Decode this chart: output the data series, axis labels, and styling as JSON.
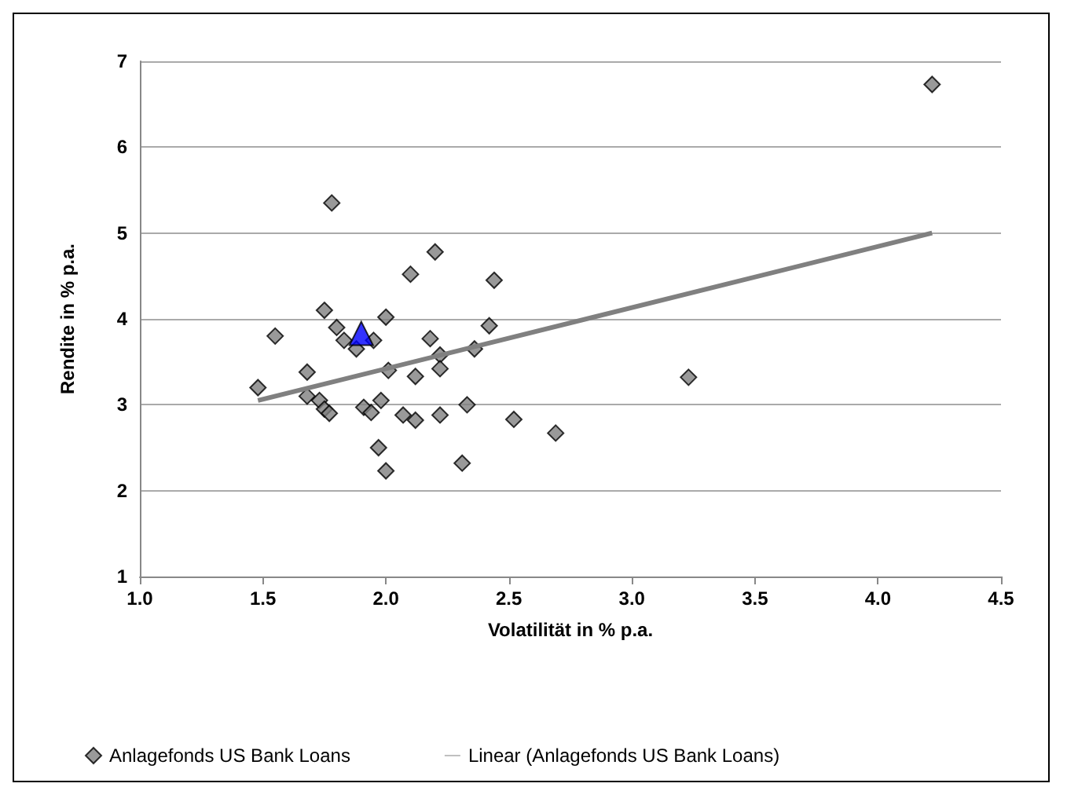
{
  "chart_data": {
    "type": "scatter",
    "xlabel": "Volatilität in % p.a.",
    "ylabel": "Rendite in % p.a.",
    "xlim": [
      1,
      4.5
    ],
    "xticks": [
      {
        "value": 1,
        "label": "1.0"
      },
      {
        "value": 1.5,
        "label": "1.5"
      },
      {
        "value": 2,
        "label": "2.0"
      },
      {
        "value": 2.5,
        "label": "2.5"
      },
      {
        "value": 3,
        "label": "3.0"
      },
      {
        "value": 3.5,
        "label": "3.5"
      },
      {
        "value": 4,
        "label": "4.0"
      },
      {
        "value": 4.5,
        "label": "4.5"
      }
    ],
    "ylim": [
      1,
      7
    ],
    "yticks": [
      1,
      2,
      3,
      4,
      5,
      6,
      7
    ],
    "grid": "y",
    "legend": "bottom",
    "series": [
      {
        "name": "Anlagefonds US Bank Loans",
        "color": "#808080",
        "marker": "diamond",
        "x": [
          4.22,
          1.48,
          1.55,
          1.78,
          1.75,
          1.8,
          1.83,
          1.68,
          1.68,
          1.73,
          1.75,
          1.77,
          1.88,
          1.91,
          1.94,
          1.95,
          1.97,
          1.98,
          2.0,
          2.0,
          2.01,
          2.07,
          2.1,
          2.12,
          2.12,
          2.18,
          2.2,
          2.22,
          2.22,
          2.22,
          2.31,
          2.33,
          2.36,
          2.42,
          2.44,
          2.52,
          2.69,
          3.23
        ],
        "values": [
          6.73,
          3.2,
          3.8,
          5.35,
          4.1,
          3.9,
          3.75,
          3.38,
          3.1,
          3.05,
          2.95,
          2.9,
          3.65,
          2.97,
          2.91,
          3.75,
          2.5,
          3.05,
          4.02,
          2.23,
          3.4,
          2.88,
          4.52,
          3.33,
          2.82,
          3.77,
          4.78,
          3.58,
          3.42,
          2.88,
          2.32,
          3.0,
          3.65,
          3.92,
          4.45,
          2.83,
          2.67,
          3.32
        ]
      },
      {
        "color": "#0000ff",
        "marker": "triangle",
        "x": [
          1.9
        ],
        "values": [
          3.83
        ]
      },
      {
        "name": "Linear (Anlagefonds US Bank Loans)",
        "type": "line",
        "color": "#808080",
        "marker": "none",
        "line_style": "solid",
        "x": [
          1.48,
          4.22
        ],
        "values": [
          3.05,
          5.0
        ]
      }
    ]
  }
}
